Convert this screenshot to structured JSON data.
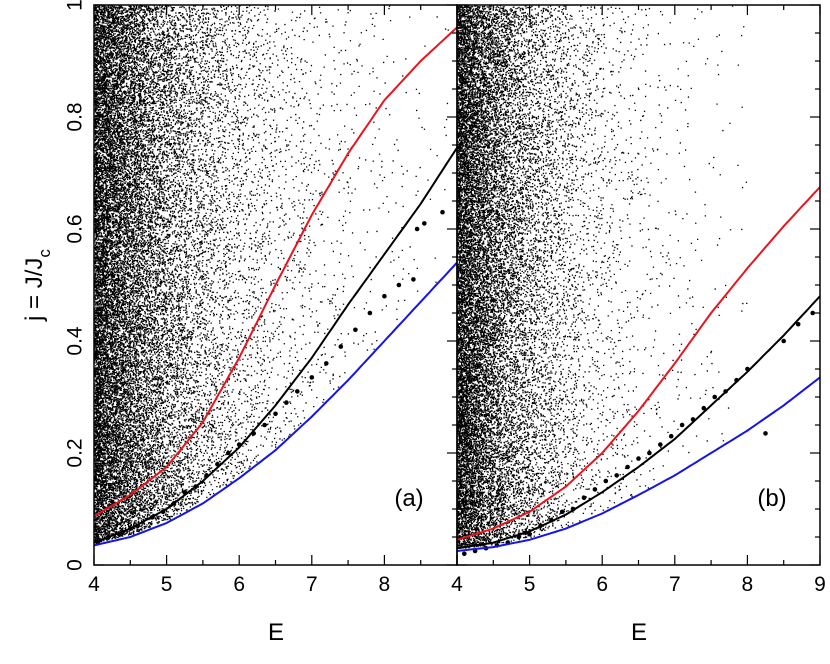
{
  "chart_data": [
    {
      "type": "scatter",
      "panel_label": "(a)",
      "xlabel": "E",
      "ylabel": "j = J/J_c",
      "xlim": [
        4,
        9
      ],
      "ylim": [
        0,
        1
      ],
      "x_ticks": [
        4,
        5,
        6,
        7,
        8
      ],
      "y_ticks": [
        0,
        0.2,
        0.4,
        0.6,
        0.8,
        1
      ],
      "y_tick_labels": [
        "0",
        "0.2",
        "0.4",
        "0.6",
        "0.8",
        "1"
      ],
      "grid": false,
      "background_points_description_note": "",
      "curves": [
        {
          "color": "#e8141e",
          "x": [
            4,
            4.5,
            5,
            5.5,
            6,
            6.5,
            7,
            7.5,
            8,
            8.5,
            9
          ],
          "y": [
            0.087,
            0.125,
            0.175,
            0.255,
            0.37,
            0.5,
            0.625,
            0.735,
            0.83,
            0.9,
            0.96
          ]
        },
        {
          "color": "#000000",
          "x": [
            4,
            4.5,
            5,
            5.5,
            6,
            6.5,
            7,
            7.5,
            8,
            8.5,
            9
          ],
          "y": [
            0.04,
            0.065,
            0.1,
            0.15,
            0.21,
            0.285,
            0.37,
            0.465,
            0.555,
            0.645,
            0.745
          ]
        },
        {
          "color": "#1414e6",
          "x": [
            4,
            4.5,
            5,
            5.5,
            6,
            6.5,
            7,
            7.5,
            8,
            8.5,
            9
          ],
          "y": [
            0.035,
            0.05,
            0.075,
            0.11,
            0.155,
            0.205,
            0.265,
            0.33,
            0.4,
            0.47,
            0.54
          ]
        }
      ],
      "highlighted_points": {
        "x": [
          4.05,
          4.2,
          4.35,
          4.5,
          4.6,
          4.8,
          4.95,
          5.1,
          5.25,
          5.4,
          5.55,
          5.7,
          5.85,
          6.0,
          6.2,
          6.35,
          6.5,
          6.65,
          6.8,
          7.0,
          7.2,
          7.4,
          7.6,
          7.8,
          8.0,
          8.2,
          8.4,
          8.45,
          8.55,
          8.8
        ],
        "y": [
          0.04,
          0.05,
          0.055,
          0.065,
          0.07,
          0.085,
          0.095,
          0.11,
          0.13,
          0.14,
          0.16,
          0.18,
          0.2,
          0.215,
          0.235,
          0.25,
          0.27,
          0.29,
          0.31,
          0.335,
          0.36,
          0.39,
          0.42,
          0.45,
          0.48,
          0.5,
          0.51,
          0.6,
          0.61,
          0.63
        ]
      },
      "dense_region": {
        "count": 26000,
        "seed": 11,
        "x0_scale": 3.2,
        "y_base": 0.06,
        "y_power": 1.0
      }
    },
    {
      "type": "scatter",
      "panel_label": "(b)",
      "xlabel": "E",
      "ylabel": "",
      "xlim": [
        4,
        9
      ],
      "ylim": [
        0,
        1
      ],
      "x_ticks": [
        4,
        5,
        6,
        7,
        8,
        9
      ],
      "y_ticks": [
        0,
        0.2,
        0.4,
        0.6,
        0.8,
        1
      ],
      "grid": false,
      "curves": [
        {
          "color": "#e8141e",
          "x": [
            4,
            4.5,
            5,
            5.5,
            6,
            6.5,
            7,
            7.5,
            8,
            8.5,
            9
          ],
          "y": [
            0.045,
            0.065,
            0.095,
            0.14,
            0.2,
            0.275,
            0.36,
            0.45,
            0.53,
            0.605,
            0.675
          ]
        },
        {
          "color": "#000000",
          "x": [
            4,
            4.5,
            5,
            5.5,
            6,
            6.5,
            7,
            7.5,
            8,
            8.5,
            9
          ],
          "y": [
            0.03,
            0.04,
            0.06,
            0.09,
            0.13,
            0.175,
            0.225,
            0.285,
            0.345,
            0.41,
            0.48
          ]
        },
        {
          "color": "#1414e6",
          "x": [
            4,
            4.5,
            5,
            5.5,
            6,
            6.5,
            7,
            7.5,
            8,
            8.5,
            9
          ],
          "y": [
            0.025,
            0.032,
            0.045,
            0.065,
            0.092,
            0.125,
            0.16,
            0.2,
            0.24,
            0.285,
            0.335
          ]
        }
      ],
      "highlighted_points": {
        "x": [
          4.1,
          4.25,
          4.4,
          4.55,
          4.7,
          4.85,
          5.0,
          5.15,
          5.3,
          5.45,
          5.6,
          5.75,
          5.9,
          6.05,
          6.2,
          6.35,
          6.5,
          6.65,
          6.8,
          6.95,
          7.1,
          7.25,
          7.4,
          7.55,
          7.7,
          7.85,
          8.0,
          8.25,
          8.5,
          8.7,
          8.9
        ],
        "y": [
          0.02,
          0.025,
          0.03,
          0.035,
          0.04,
          0.05,
          0.055,
          0.07,
          0.08,
          0.095,
          0.1,
          0.12,
          0.135,
          0.15,
          0.16,
          0.175,
          0.19,
          0.2,
          0.215,
          0.23,
          0.25,
          0.26,
          0.28,
          0.3,
          0.31,
          0.33,
          0.35,
          0.235,
          0.4,
          0.43,
          0.45
        ]
      },
      "dense_region": {
        "count": 22000,
        "seed": 23,
        "x0_scale": 2.6,
        "y_base": 0.04,
        "y_power": 1.0
      }
    }
  ]
}
